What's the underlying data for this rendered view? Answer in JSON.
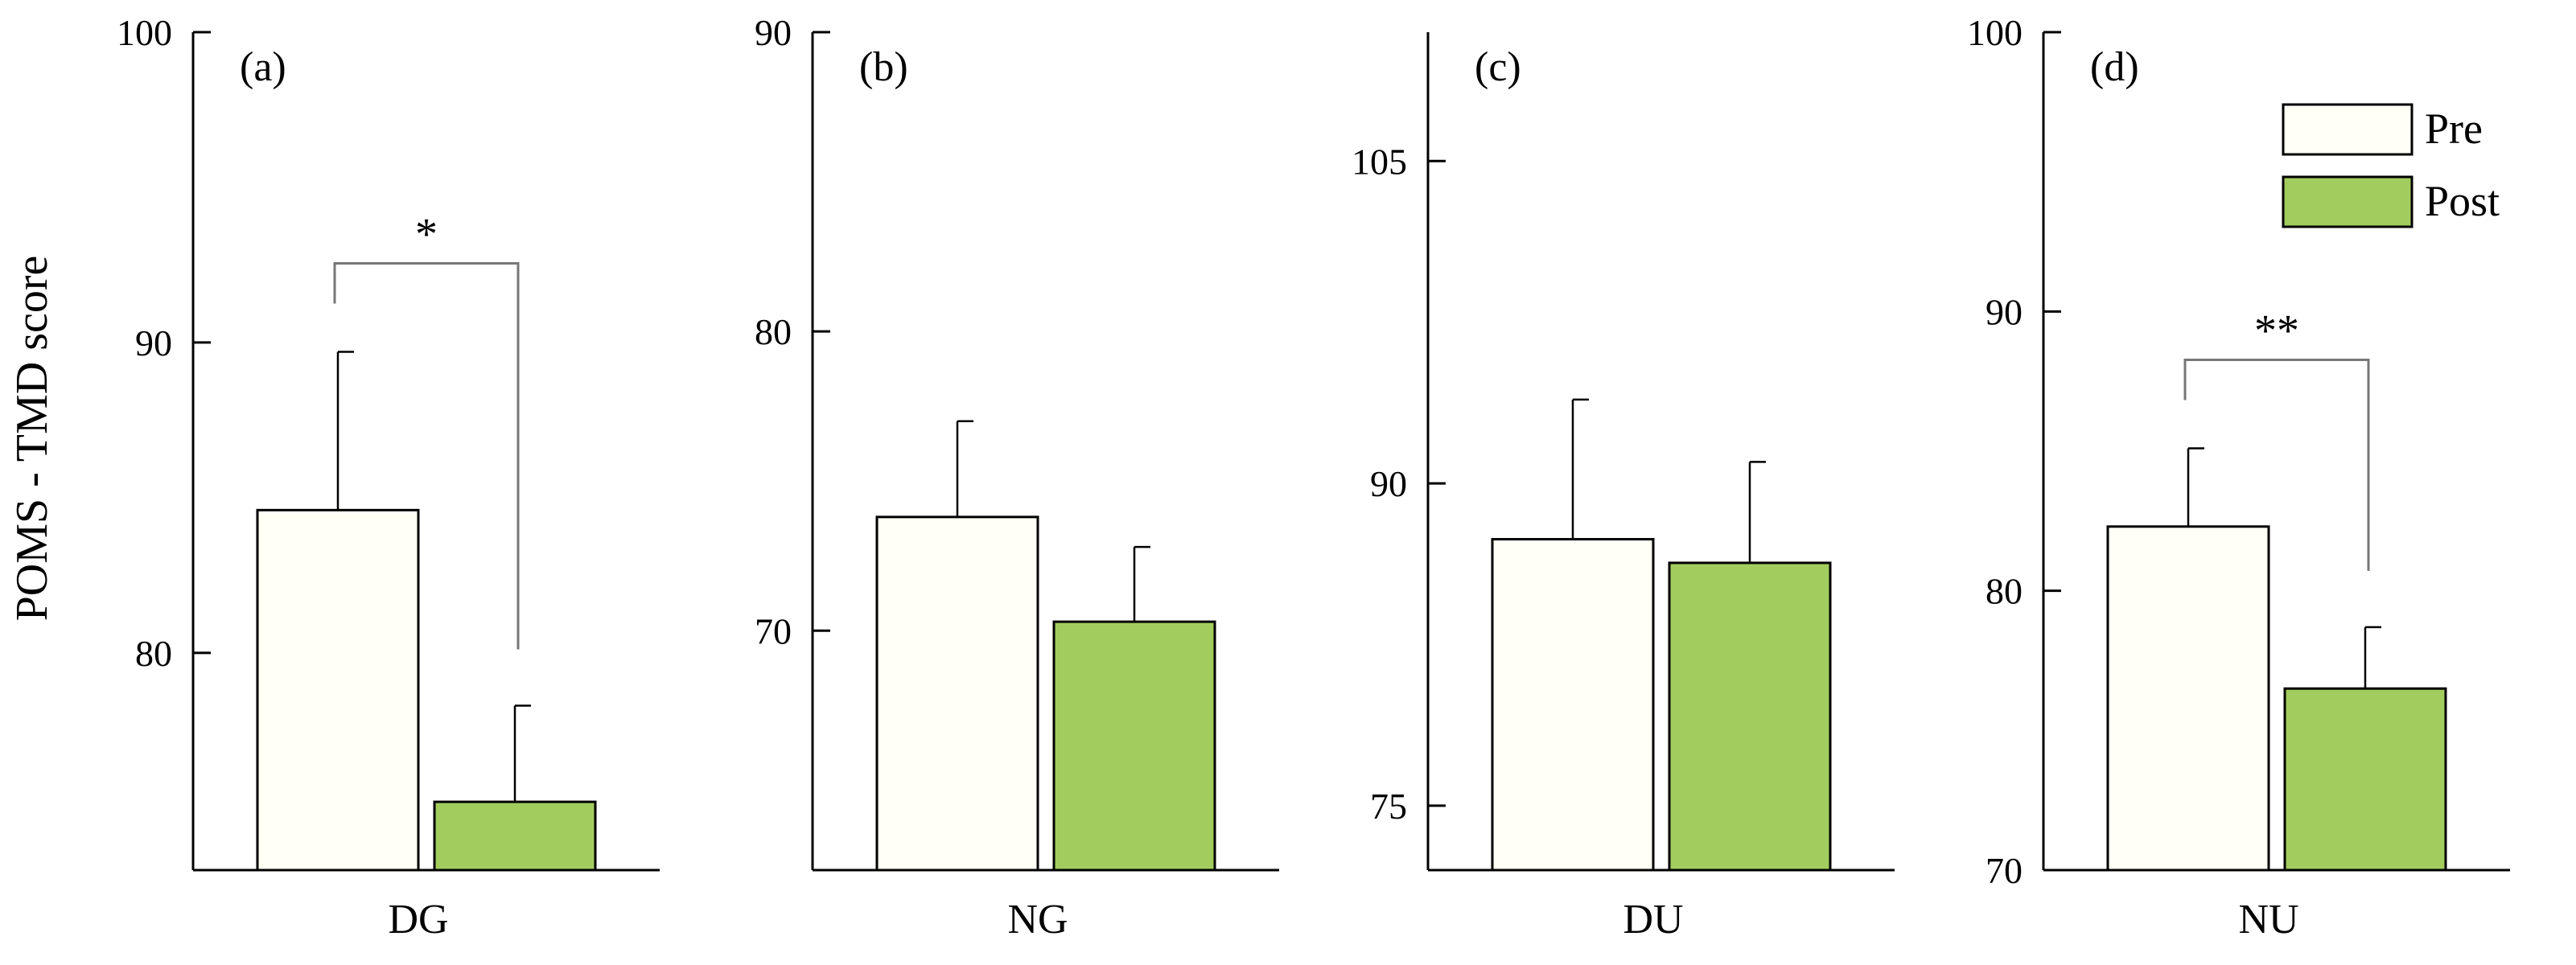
{
  "ylabel": "POMS - TMD score",
  "legend": {
    "items": [
      {
        "label": "Pre",
        "color": "#fffff5"
      },
      {
        "label": "Post",
        "color": "#a3cc5e"
      }
    ]
  },
  "colors": {
    "pre": "#fffff5",
    "post": "#a3cc5e",
    "axis": "#000000",
    "bracket": "#777777"
  },
  "chart_data": [
    {
      "type": "bar",
      "panel": "(a)",
      "categories": [
        "DG"
      ],
      "series": [
        {
          "name": "Pre",
          "values": [
            84.6
          ],
          "error": [
            5.1
          ]
        },
        {
          "name": "Post",
          "values": [
            75.2
          ],
          "error": [
            3.1
          ]
        }
      ],
      "ylim": [
        73,
        100
      ],
      "yticks": [
        80,
        90,
        100
      ],
      "significance": "*",
      "ylabel": "POMS - TMD score"
    },
    {
      "type": "bar",
      "panel": "(b)",
      "categories": [
        "NG"
      ],
      "series": [
        {
          "name": "Pre",
          "values": [
            73.8
          ],
          "error": [
            3.2
          ]
        },
        {
          "name": "Post",
          "values": [
            70.3
          ],
          "error": [
            2.5
          ]
        }
      ],
      "ylim": [
        62,
        90
      ],
      "yticks": [
        70,
        80,
        90
      ],
      "significance": ""
    },
    {
      "type": "bar",
      "panel": "(c)",
      "categories": [
        "DU"
      ],
      "series": [
        {
          "name": "Pre",
          "values": [
            87.4
          ],
          "error": [
            6.5
          ]
        },
        {
          "name": "Post",
          "values": [
            86.3
          ],
          "error": [
            4.7
          ]
        }
      ],
      "ylim": [
        72,
        111
      ],
      "yticks": [
        75,
        90,
        105
      ],
      "significance": ""
    },
    {
      "type": "bar",
      "panel": "(d)",
      "categories": [
        "NU"
      ],
      "series": [
        {
          "name": "Pre",
          "values": [
            82.3
          ],
          "error": [
            2.8
          ]
        },
        {
          "name": "Post",
          "values": [
            76.5
          ],
          "error": [
            2.2
          ]
        }
      ],
      "ylim": [
        70,
        100
      ],
      "yticks": [
        70,
        80,
        90,
        100
      ],
      "significance": "**"
    }
  ]
}
